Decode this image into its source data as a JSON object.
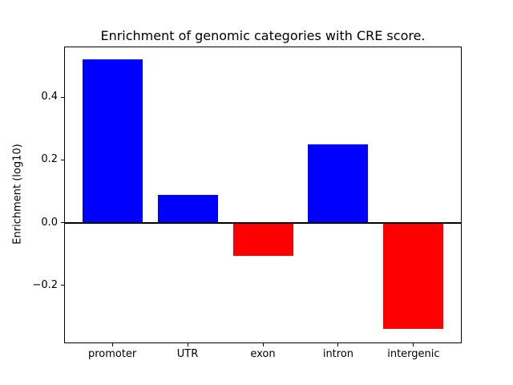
{
  "chart_data": {
    "type": "bar",
    "title": "Enrichment of genomic categories with CRE score.",
    "xlabel": "",
    "ylabel": "Enrichment (log10)",
    "categories": [
      "promoter",
      "UTR",
      "exon",
      "intron",
      "intergenic"
    ],
    "values": [
      0.52,
      0.088,
      -0.107,
      0.25,
      -0.34
    ],
    "bar_colors": [
      "#0000ff",
      "#0000ff",
      "#ff0000",
      "#0000ff",
      "#ff0000"
    ],
    "positive_color": "#0000ff",
    "negative_color": "#ff0000",
    "ylim": [
      -0.383,
      0.563
    ],
    "yticks": [
      0.4,
      0.2,
      0.0,
      -0.2
    ],
    "ytick_labels": [
      "0.4",
      "0.2",
      "0.0",
      "−0.2"
    ],
    "grid": false,
    "legend": null,
    "zero_line": true,
    "background_color": "#ffffff"
  }
}
